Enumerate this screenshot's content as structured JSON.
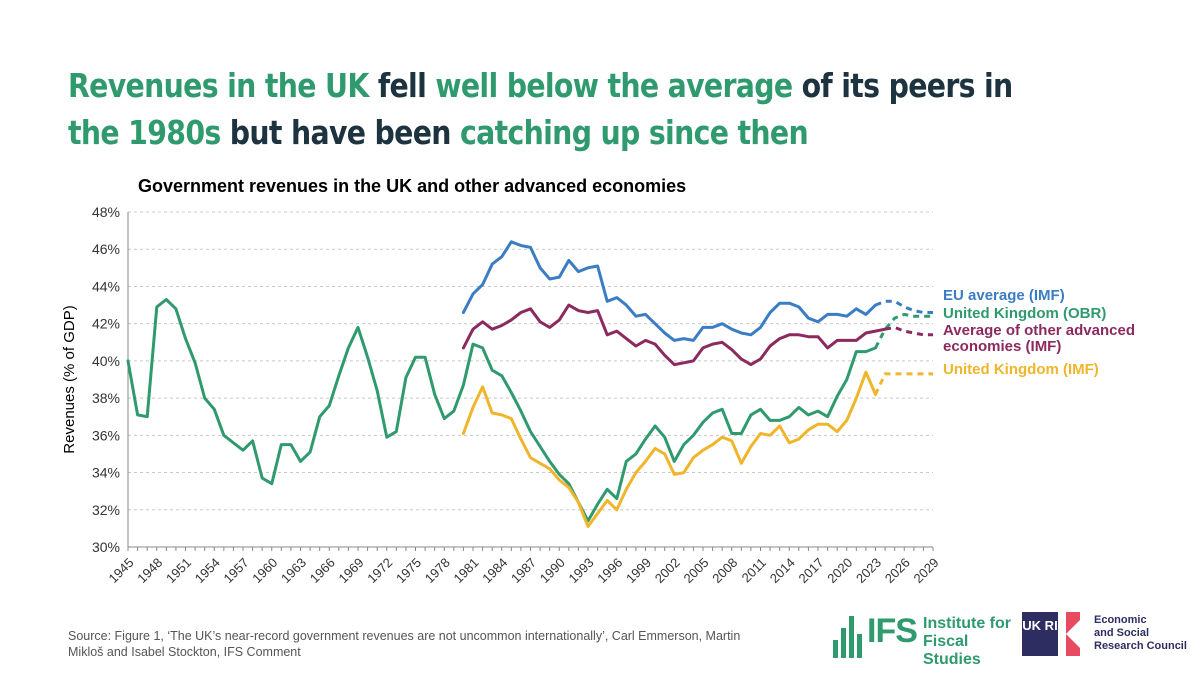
{
  "headline": {
    "parts": [
      {
        "text": "Revenues in the UK",
        "hl": true
      },
      {
        "text": " fell ",
        "hl": false
      },
      {
        "text": "well below the average",
        "hl": true
      },
      {
        "text": " of its peers in ",
        "hl": false
      },
      {
        "text": "the 1980s",
        "hl": true
      },
      {
        "text": " but have been ",
        "hl": false
      },
      {
        "text": "catching up since then",
        "hl": true
      }
    ]
  },
  "source": "Source: Figure 1, ‘The UK’s near-record government revenues are not uncommon internationally’, Carl Emmerson, Martin Mikloš and Isabel Stockton, IFS Comment",
  "logos": {
    "ifs_mark": "IFS",
    "ifs_name_line1": "Institute for",
    "ifs_name_line2": "Fiscal Studies",
    "ukri_mark": "UK RI",
    "ukri_line1": "Economic",
    "ukri_line2": "and Social",
    "ukri_line3": "Research Council"
  },
  "colors": {
    "accent": "#2f9a6e",
    "dark": "#1d3340",
    "eu": "#3a7dc4",
    "uk_obr": "#2f9a6e",
    "other": "#8c2a5e",
    "uk_imf": "#f0b52a"
  },
  "chart_data": {
    "type": "line",
    "title": "Government revenues in the UK and other advanced economies",
    "xlabel": "",
    "ylabel": "Revenues (% of GDP)",
    "ylim": [
      30,
      48
    ],
    "yticks": [
      30,
      32,
      34,
      36,
      38,
      40,
      42,
      44,
      46,
      48
    ],
    "ytick_labels": [
      "30%",
      "32%",
      "34%",
      "36%",
      "38%",
      "40%",
      "42%",
      "44%",
      "46%",
      "48%"
    ],
    "xlim": [
      1945,
      2029
    ],
    "xticks": [
      1945,
      1948,
      1951,
      1954,
      1957,
      1960,
      1963,
      1966,
      1969,
      1972,
      1975,
      1978,
      1981,
      1984,
      1987,
      1990,
      1993,
      1996,
      1999,
      2002,
      2005,
      2008,
      2011,
      2014,
      2017,
      2020,
      2023,
      2026,
      2029
    ],
    "grid": true,
    "series": [
      {
        "name": "EU average (IMF)",
        "color": "#3a7dc4",
        "label_lines": [
          "EU average (IMF)"
        ],
        "start_year": 1980,
        "values": [
          42.6,
          43.6,
          44.1,
          45.2,
          45.6,
          46.4,
          46.2,
          46.1,
          45.0,
          44.4,
          44.5,
          45.4,
          44.8,
          45.0,
          45.1,
          43.2,
          43.4,
          43.0,
          42.4,
          42.5,
          42.0,
          41.5,
          41.1,
          41.2,
          41.1,
          41.8,
          41.8,
          42.0,
          41.7,
          41.5,
          41.4,
          41.8,
          42.6,
          43.1,
          43.1,
          42.9,
          42.3,
          42.1,
          42.5,
          42.5,
          42.4,
          42.8,
          42.5,
          43.0,
          43.2,
          43.2,
          42.9,
          42.7,
          42.6,
          42.6
        ],
        "dashed_from_index": 43
      },
      {
        "name": "United Kingdom (OBR)",
        "color": "#2f9a6e",
        "label_lines": [
          "United Kingdom (OBR)"
        ],
        "start_year": 1945,
        "values": [
          40.0,
          37.1,
          37.0,
          42.9,
          43.3,
          42.8,
          41.2,
          39.9,
          38.0,
          37.4,
          36.0,
          35.6,
          35.2,
          35.7,
          33.7,
          33.4,
          35.5,
          35.5,
          34.6,
          35.1,
          37.0,
          37.6,
          39.2,
          40.7,
          41.8,
          40.2,
          38.4,
          35.9,
          36.2,
          39.1,
          40.2,
          40.2,
          38.2,
          36.9,
          37.3,
          38.7,
          40.9,
          40.7,
          39.5,
          39.2,
          38.3,
          37.3,
          36.2,
          35.4,
          34.6,
          33.9,
          33.4,
          32.4,
          31.4,
          32.3,
          33.1,
          32.6,
          34.6,
          35.0,
          35.8,
          36.5,
          35.9,
          34.6,
          35.5,
          36.0,
          36.7,
          37.2,
          37.4,
          36.1,
          36.1,
          37.1,
          37.4,
          36.8,
          36.8,
          37.0,
          37.5,
          37.1,
          37.3,
          37.0,
          38.1,
          39.0,
          40.5,
          40.5,
          40.7,
          41.7,
          42.3,
          42.5,
          42.4,
          42.4,
          42.4
        ],
        "dashed_from_index": 78
      },
      {
        "name": "Average of other advanced economies (IMF)",
        "color": "#8c2a5e",
        "label_lines": [
          "Average of other advanced",
          "economies (IMF)"
        ],
        "start_year": 1980,
        "values": [
          40.7,
          41.7,
          42.1,
          41.7,
          41.9,
          42.2,
          42.6,
          42.8,
          42.1,
          41.8,
          42.2,
          43.0,
          42.7,
          42.6,
          42.7,
          41.4,
          41.6,
          41.2,
          40.8,
          41.1,
          40.9,
          40.3,
          39.8,
          39.9,
          40.0,
          40.7,
          40.9,
          41.0,
          40.6,
          40.1,
          39.8,
          40.1,
          40.8,
          41.2,
          41.4,
          41.4,
          41.3,
          41.3,
          40.7,
          41.1,
          41.1,
          41.1,
          41.5,
          41.6,
          41.7,
          41.8,
          41.6,
          41.5,
          41.4,
          41.4
        ],
        "dashed_from_index": 44
      },
      {
        "name": "United Kingdom (IMF)",
        "color": "#f0b52a",
        "label_lines": [
          "United Kingdom (IMF)"
        ],
        "start_year": 1980,
        "values": [
          36.1,
          37.5,
          38.6,
          37.2,
          37.1,
          36.9,
          35.8,
          34.8,
          34.5,
          34.2,
          33.6,
          33.2,
          32.4,
          31.1,
          31.8,
          32.5,
          32.0,
          33.1,
          34.0,
          34.6,
          35.3,
          35.0,
          33.9,
          34.0,
          34.8,
          35.2,
          35.5,
          35.9,
          35.7,
          34.5,
          35.4,
          36.1,
          36.0,
          36.5,
          35.6,
          35.8,
          36.3,
          36.6,
          36.6,
          36.2,
          36.8,
          38.0,
          39.4,
          38.2,
          39.3,
          39.3,
          39.3,
          39.3,
          39.3,
          39.3
        ],
        "dashed_from_index": 43
      }
    ]
  }
}
